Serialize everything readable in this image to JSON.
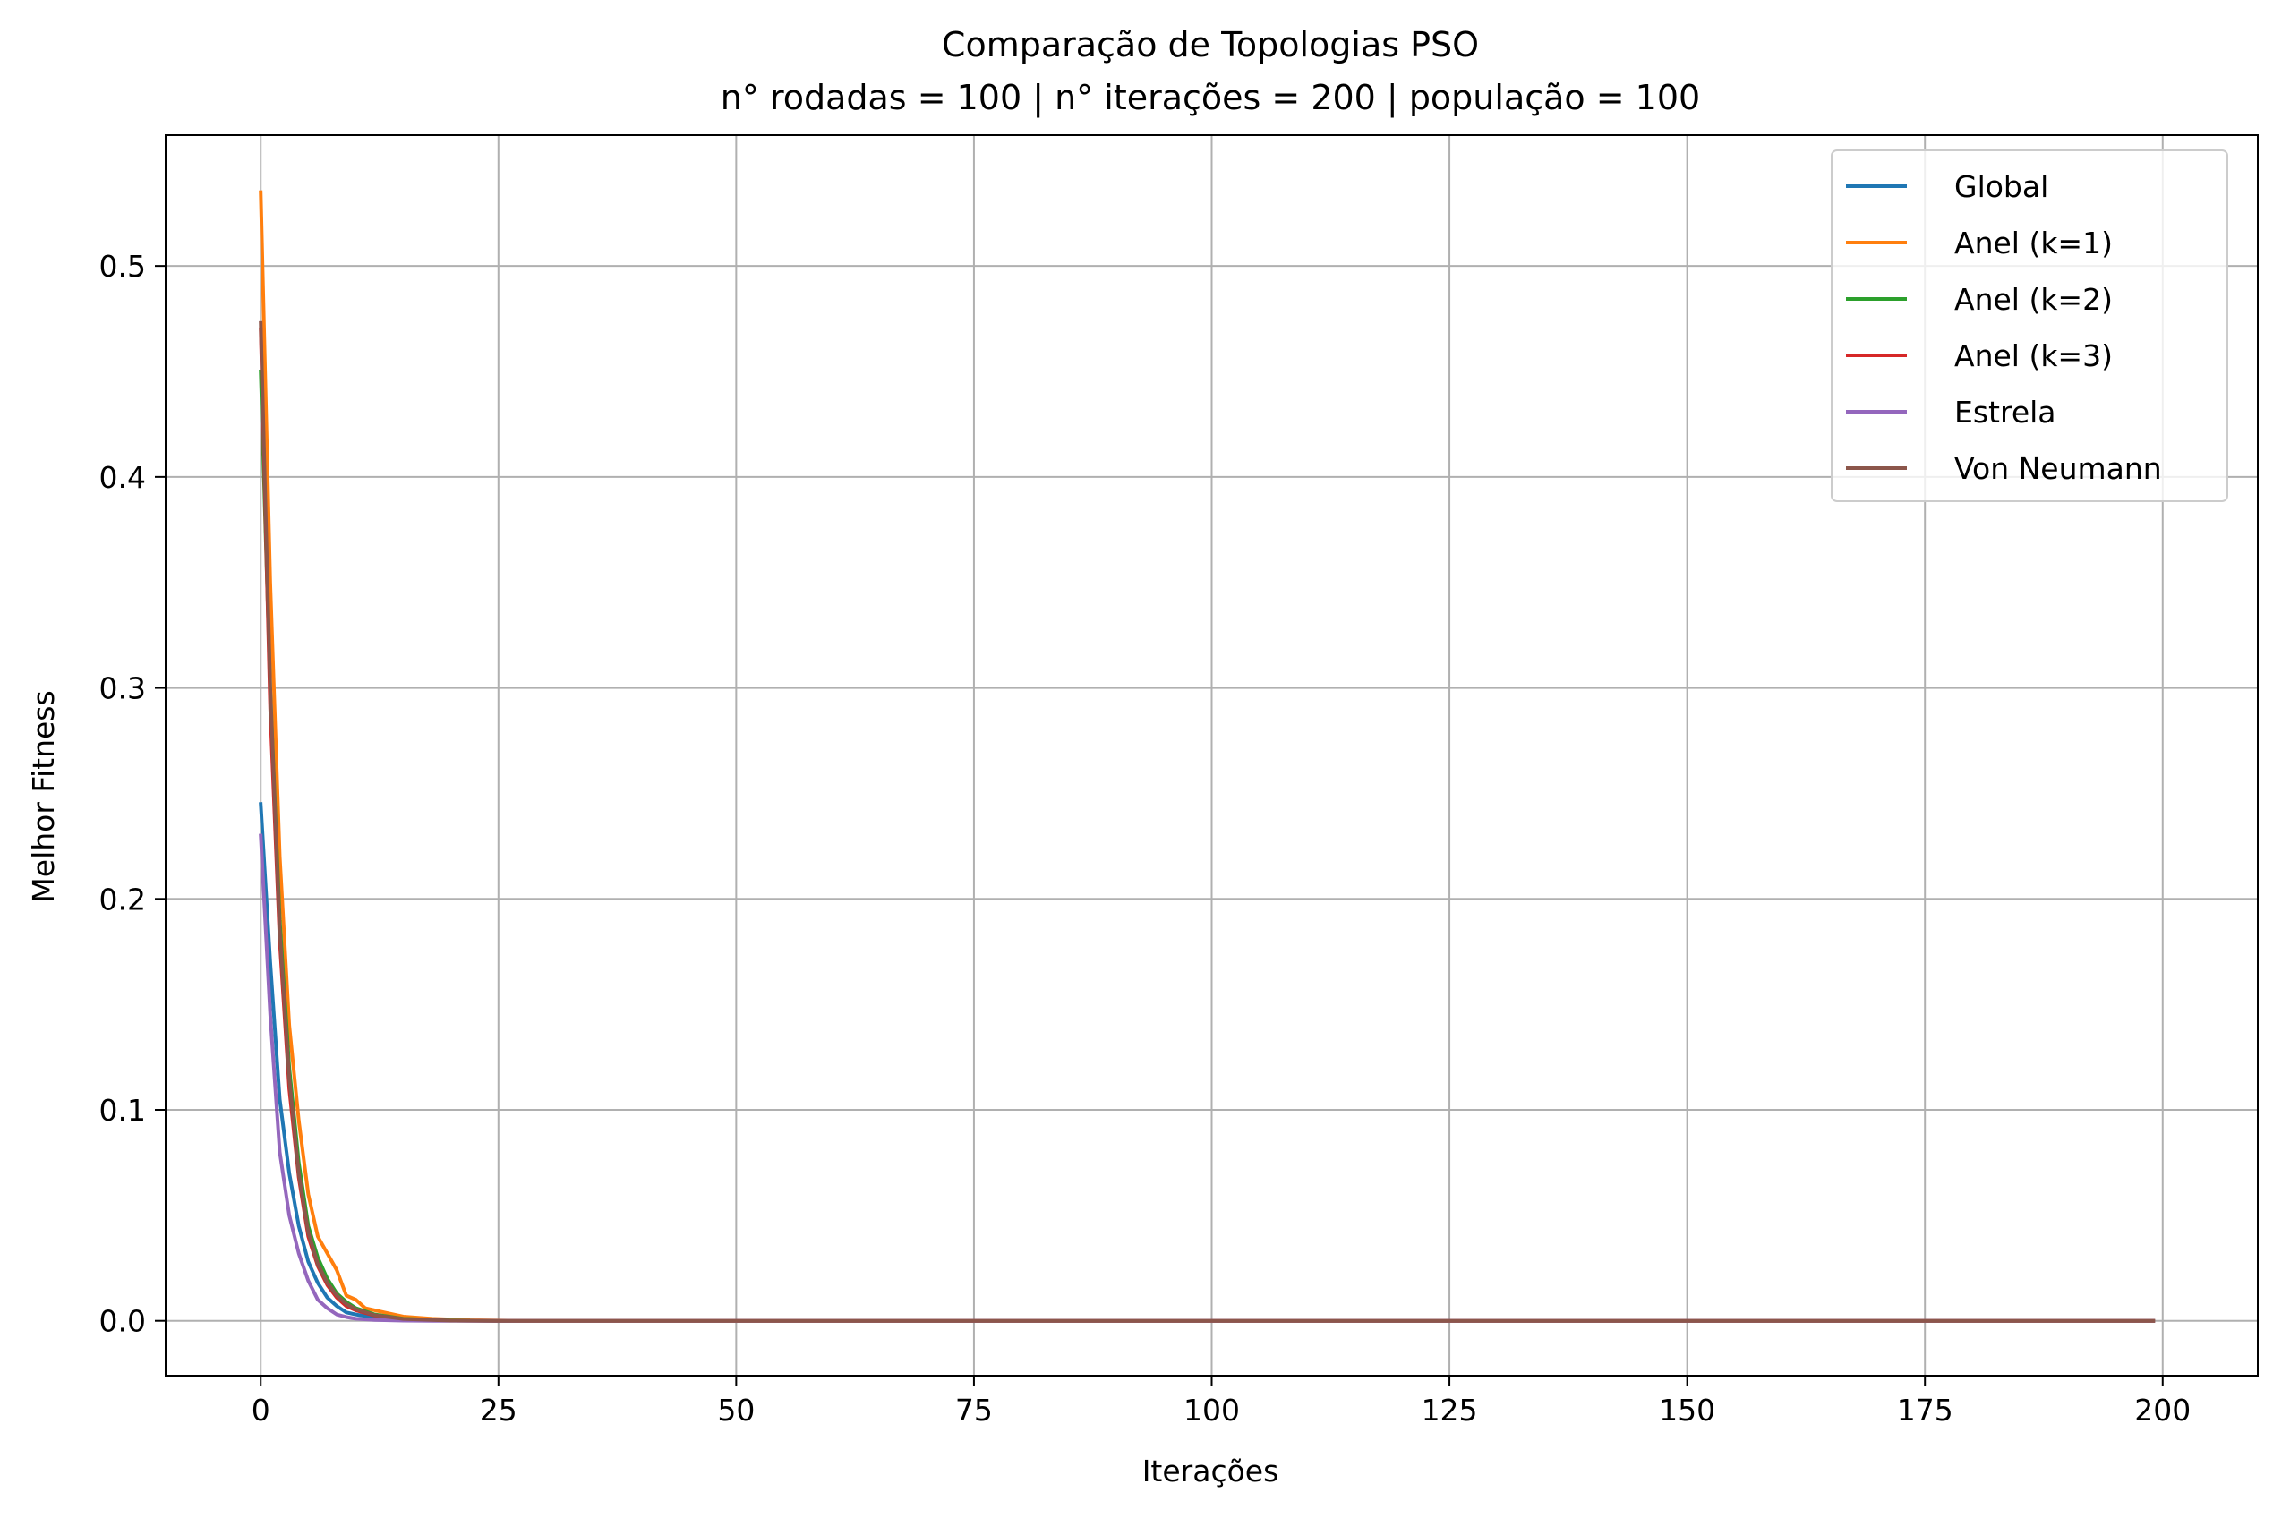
{
  "chart_data": {
    "type": "line",
    "title": "Comparação de Topologias PSO",
    "subtitle": "n° rodadas = 100 | n° iterações = 200 | população = 100",
    "xlabel": "Iterações",
    "ylabel": "Melhor Fitness",
    "xlim": [
      -10,
      210
    ],
    "ylim": [
      -0.026,
      0.562
    ],
    "xticks": [
      0,
      25,
      50,
      75,
      100,
      125,
      150,
      175,
      200
    ],
    "xtick_labels": [
      "0",
      "25",
      "50",
      "75",
      "100",
      "125",
      "150",
      "175",
      "200"
    ],
    "yticks": [
      0.0,
      0.1,
      0.2,
      0.3,
      0.4,
      0.5
    ],
    "ytick_labels": [
      "0.0",
      "0.1",
      "0.2",
      "0.3",
      "0.4",
      "0.5"
    ],
    "grid": true,
    "legend_position": "top-right",
    "x_max": 199,
    "series": [
      {
        "name": "Global",
        "color": "#1f77b4",
        "points": [
          [
            0,
            0.245
          ],
          [
            1,
            0.17
          ],
          [
            2,
            0.105
          ],
          [
            3,
            0.07
          ],
          [
            4,
            0.045
          ],
          [
            5,
            0.028
          ],
          [
            6,
            0.018
          ],
          [
            7,
            0.011
          ],
          [
            8,
            0.007
          ],
          [
            9,
            0.004
          ],
          [
            10,
            0.003
          ],
          [
            12,
            0.0015
          ],
          [
            15,
            0.0005
          ],
          [
            20,
            0.0001
          ],
          [
            25,
            0.0
          ],
          [
            199,
            0.0
          ]
        ]
      },
      {
        "name": "Anel (k=1)",
        "color": "#ff7f0e",
        "points": [
          [
            0,
            0.535
          ],
          [
            1,
            0.35
          ],
          [
            2,
            0.22
          ],
          [
            3,
            0.14
          ],
          [
            4,
            0.095
          ],
          [
            5,
            0.06
          ],
          [
            6,
            0.04
          ],
          [
            7,
            0.032
          ],
          [
            8,
            0.024
          ],
          [
            9,
            0.012
          ],
          [
            10,
            0.01
          ],
          [
            11,
            0.006
          ],
          [
            13,
            0.004
          ],
          [
            15,
            0.002
          ],
          [
            18,
            0.001
          ],
          [
            22,
            0.0003
          ],
          [
            28,
            0.0
          ],
          [
            199,
            0.0
          ]
        ]
      },
      {
        "name": "Anel (k=2)",
        "color": "#2ca02c",
        "points": [
          [
            0,
            0.45
          ],
          [
            1,
            0.3
          ],
          [
            2,
            0.19
          ],
          [
            3,
            0.12
          ],
          [
            4,
            0.075
          ],
          [
            5,
            0.045
          ],
          [
            6,
            0.03
          ],
          [
            7,
            0.02
          ],
          [
            8,
            0.013
          ],
          [
            9,
            0.009
          ],
          [
            10,
            0.006
          ],
          [
            12,
            0.003
          ],
          [
            15,
            0.001
          ],
          [
            20,
            0.0002
          ],
          [
            25,
            0.0
          ],
          [
            199,
            0.0
          ]
        ]
      },
      {
        "name": "Anel (k=3)",
        "color": "#d62728",
        "points": [
          [
            0,
            0.47
          ],
          [
            1,
            0.29
          ],
          [
            2,
            0.18
          ],
          [
            3,
            0.11
          ],
          [
            4,
            0.068
          ],
          [
            5,
            0.04
          ],
          [
            6,
            0.026
          ],
          [
            7,
            0.017
          ],
          [
            8,
            0.011
          ],
          [
            9,
            0.007
          ],
          [
            10,
            0.005
          ],
          [
            12,
            0.0025
          ],
          [
            15,
            0.0008
          ],
          [
            20,
            0.0001
          ],
          [
            25,
            0.0
          ],
          [
            199,
            0.0
          ]
        ]
      },
      {
        "name": "Estrela",
        "color": "#9467bd",
        "points": [
          [
            0,
            0.23
          ],
          [
            1,
            0.145
          ],
          [
            2,
            0.08
          ],
          [
            3,
            0.05
          ],
          [
            4,
            0.032
          ],
          [
            5,
            0.019
          ],
          [
            6,
            0.01
          ],
          [
            7,
            0.006
          ],
          [
            8,
            0.003
          ],
          [
            9,
            0.0018
          ],
          [
            10,
            0.001
          ],
          [
            12,
            0.0004
          ],
          [
            15,
            0.0001
          ],
          [
            18,
            0.0
          ],
          [
            199,
            0.0
          ]
        ]
      },
      {
        "name": "Von Neumann",
        "color": "#8c564b",
        "points": [
          [
            0,
            0.473
          ],
          [
            1,
            0.3
          ],
          [
            2,
            0.185
          ],
          [
            3,
            0.115
          ],
          [
            4,
            0.07
          ],
          [
            5,
            0.042
          ],
          [
            6,
            0.027
          ],
          [
            7,
            0.018
          ],
          [
            8,
            0.012
          ],
          [
            9,
            0.008
          ],
          [
            10,
            0.0055
          ],
          [
            12,
            0.0027
          ],
          [
            15,
            0.0009
          ],
          [
            20,
            0.0001
          ],
          [
            25,
            0.0
          ],
          [
            199,
            0.0
          ]
        ]
      }
    ]
  }
}
